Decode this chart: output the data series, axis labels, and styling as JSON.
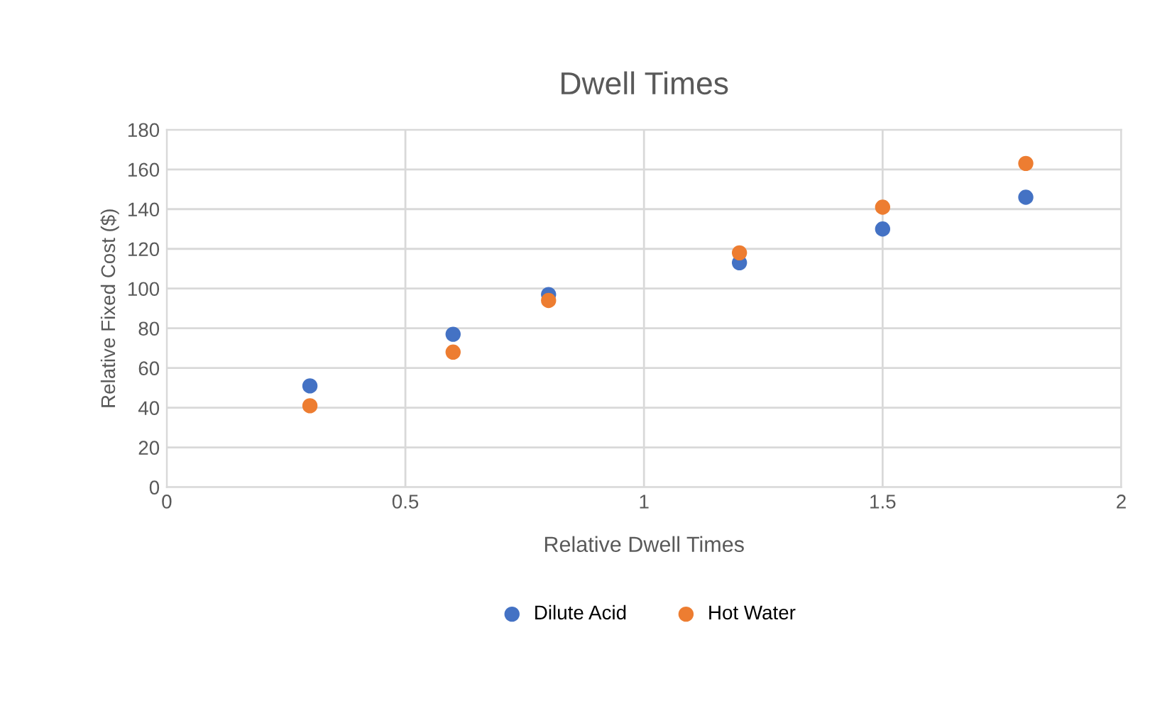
{
  "chart_data": {
    "type": "scatter",
    "title": "Dwell Times",
    "xlabel": "Relative Dwell Times",
    "ylabel": "Relative Fixed Cost ($)",
    "xlim": [
      0,
      2
    ],
    "xticks": [
      0,
      0.5,
      1,
      1.5,
      2
    ],
    "ylim": [
      0,
      180
    ],
    "yticks": [
      0,
      20,
      40,
      60,
      80,
      100,
      120,
      140,
      160,
      180
    ],
    "grid": true,
    "legend": "bottom",
    "marker": "circle",
    "series": [
      {
        "name": "Dilute Acid",
        "color": "#4472c4",
        "x": [
          0.3,
          0.6,
          0.8,
          1.2,
          1.5,
          1.8
        ],
        "values": [
          51,
          77,
          97,
          113,
          130,
          146
        ]
      },
      {
        "name": "Hot Water",
        "color": "#ed7d31",
        "x": [
          0.3,
          0.6,
          0.8,
          1.2,
          1.5,
          1.8
        ],
        "values": [
          41,
          68,
          94,
          118,
          141,
          163
        ]
      }
    ]
  }
}
